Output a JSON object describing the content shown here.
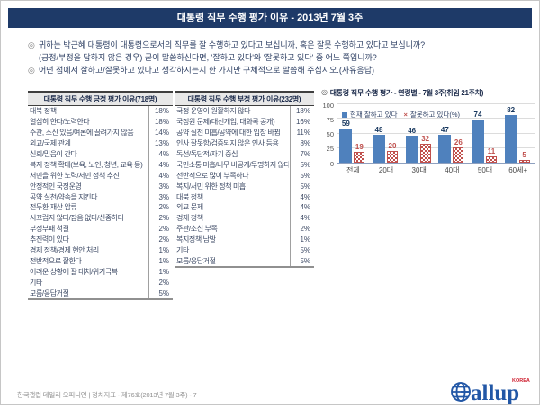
{
  "header": {
    "title": "대통령 직무 수행 평가 이유 - 2013년 7월 3주"
  },
  "questions": [
    {
      "bullet": "◎",
      "text": "귀하는 박근혜 대통령이 대통령으로서의 직무를 잘 수행하고 있다고 보십니까, 혹은 잘못 수행하고 있다고 보십니까?"
    },
    {
      "bullet": "",
      "text": "(긍정/부정을 답하지 않은 경우) 굳이 말씀하신다면, '잘하고 있다'와 '잘못하고 있다' 중 어느 쪽입니까?"
    },
    {
      "bullet": "◎",
      "text": "어떤 점에서 잘하고/잘못하고 있다고 생각하시는지 한 가지만 구체적으로 말씀해 주십시오.(자유응답)"
    }
  ],
  "positive_table": {
    "title": "대통령 직무 수행 긍정 평가 이유(718명)",
    "rows": [
      {
        "label": "대북 정책",
        "value": "18%"
      },
      {
        "label": "열심히 한다/노력한다",
        "value": "18%"
      },
      {
        "label": "주관, 소신 있음/여론에 끌려가지 않음",
        "value": "14%"
      },
      {
        "label": "외교/국제 관계",
        "value": "13%"
      },
      {
        "label": "신뢰/믿음이 간다",
        "value": "4%"
      },
      {
        "label": "복지 정책 확대(보육, 노인, 청년, 교육 등)",
        "value": "4%"
      },
      {
        "label": "서민을 위한 노력/서민 정책 추진",
        "value": "4%"
      },
      {
        "label": "안정적인 국정운영",
        "value": "3%"
      },
      {
        "label": "공약 실천/약속을 지킨다",
        "value": "3%"
      },
      {
        "label": "전두환 재산 압류",
        "value": "2%"
      },
      {
        "label": "시끄럽지 않다/잡음 없다/신중하다",
        "value": "2%"
      },
      {
        "label": "부정부패 척결",
        "value": "2%"
      },
      {
        "label": "추진력이 있다",
        "value": "2%"
      },
      {
        "label": "경제 정책/경제 현안 처리",
        "value": "1%"
      },
      {
        "label": "전반적으로 잘한다",
        "value": "1%"
      },
      {
        "label": "어려운 상황에 잘 대처/위기극복",
        "value": "1%"
      },
      {
        "label": "기타",
        "value": "2%"
      },
      {
        "label": "모름/응답거절",
        "value": "5%"
      }
    ]
  },
  "negative_table": {
    "title": "대통령 직무 수행 부정 평가 이유(232명)",
    "rows": [
      {
        "label": "국정 운영이 원활하지 않다",
        "value": "18%"
      },
      {
        "label": "국정원 문제(대선개입, 대화록 공개)",
        "value": "16%"
      },
      {
        "label": "공약 실천 미흡/공약에 대한 입장 바뀜",
        "value": "11%"
      },
      {
        "label": "인사 잘못함/검증되지 않은 인사 등용",
        "value": "8%"
      },
      {
        "label": "독선/독단적/자기 중심",
        "value": "7%"
      },
      {
        "label": "국민소통 미흡/너무 비공개/투명하지 않다",
        "value": "5%"
      },
      {
        "label": "전반적으로 많이 부족하다",
        "value": "5%"
      },
      {
        "label": "복지/서민 위한 정책 미흡",
        "value": "5%"
      },
      {
        "label": "대북 정책",
        "value": "4%"
      },
      {
        "label": "외교 문제",
        "value": "4%"
      },
      {
        "label": "경제 정책",
        "value": "4%"
      },
      {
        "label": "주관/소신 부족",
        "value": "2%"
      },
      {
        "label": "복지정책 남발",
        "value": "1%"
      },
      {
        "label": "기타",
        "value": "5%"
      },
      {
        "label": "모름/응답거절",
        "value": "5%"
      }
    ]
  },
  "chart": {
    "bullet": "◎",
    "title": "대통령 직무 수행 평가 - 연령별 - 7월 3주(취임 21주차)",
    "marker_negative": "×"
  },
  "chart_data": {
    "type": "bar",
    "title": "대통령 직무 수행 평가 - 연령별 - 7월 3주(취임 21주차)",
    "categories": [
      "전체",
      "20대",
      "30대",
      "40대",
      "50대",
      "60세+"
    ],
    "series": [
      {
        "name": "현재 잘하고 있다",
        "values": [
          59,
          48,
          46,
          47,
          74,
          82
        ],
        "color": "#4f81bd",
        "style": "solid"
      },
      {
        "name": "잘못하고 있다(%)",
        "values": [
          19,
          20,
          32,
          26,
          11,
          5
        ],
        "color": "#c0504d",
        "style": "checker"
      }
    ],
    "ylabel": "",
    "xlabel": "",
    "ylim": [
      0,
      100
    ],
    "yticks": [
      0,
      25,
      50,
      75,
      100
    ],
    "grid": true,
    "legend_position": "top-inside"
  },
  "footer": {
    "text": "한국갤럽 데일리 오피니언 | 정치지표 - 제76호(2013년 7월 3주) - 7"
  },
  "logo": {
    "text": "allup",
    "region": "KOREA"
  },
  "colors": {
    "titlebar": "#1e3a68",
    "positive_bar": "#4f81bd",
    "negative_bar": "#c0504d",
    "logo_blue": "#2257a6"
  }
}
